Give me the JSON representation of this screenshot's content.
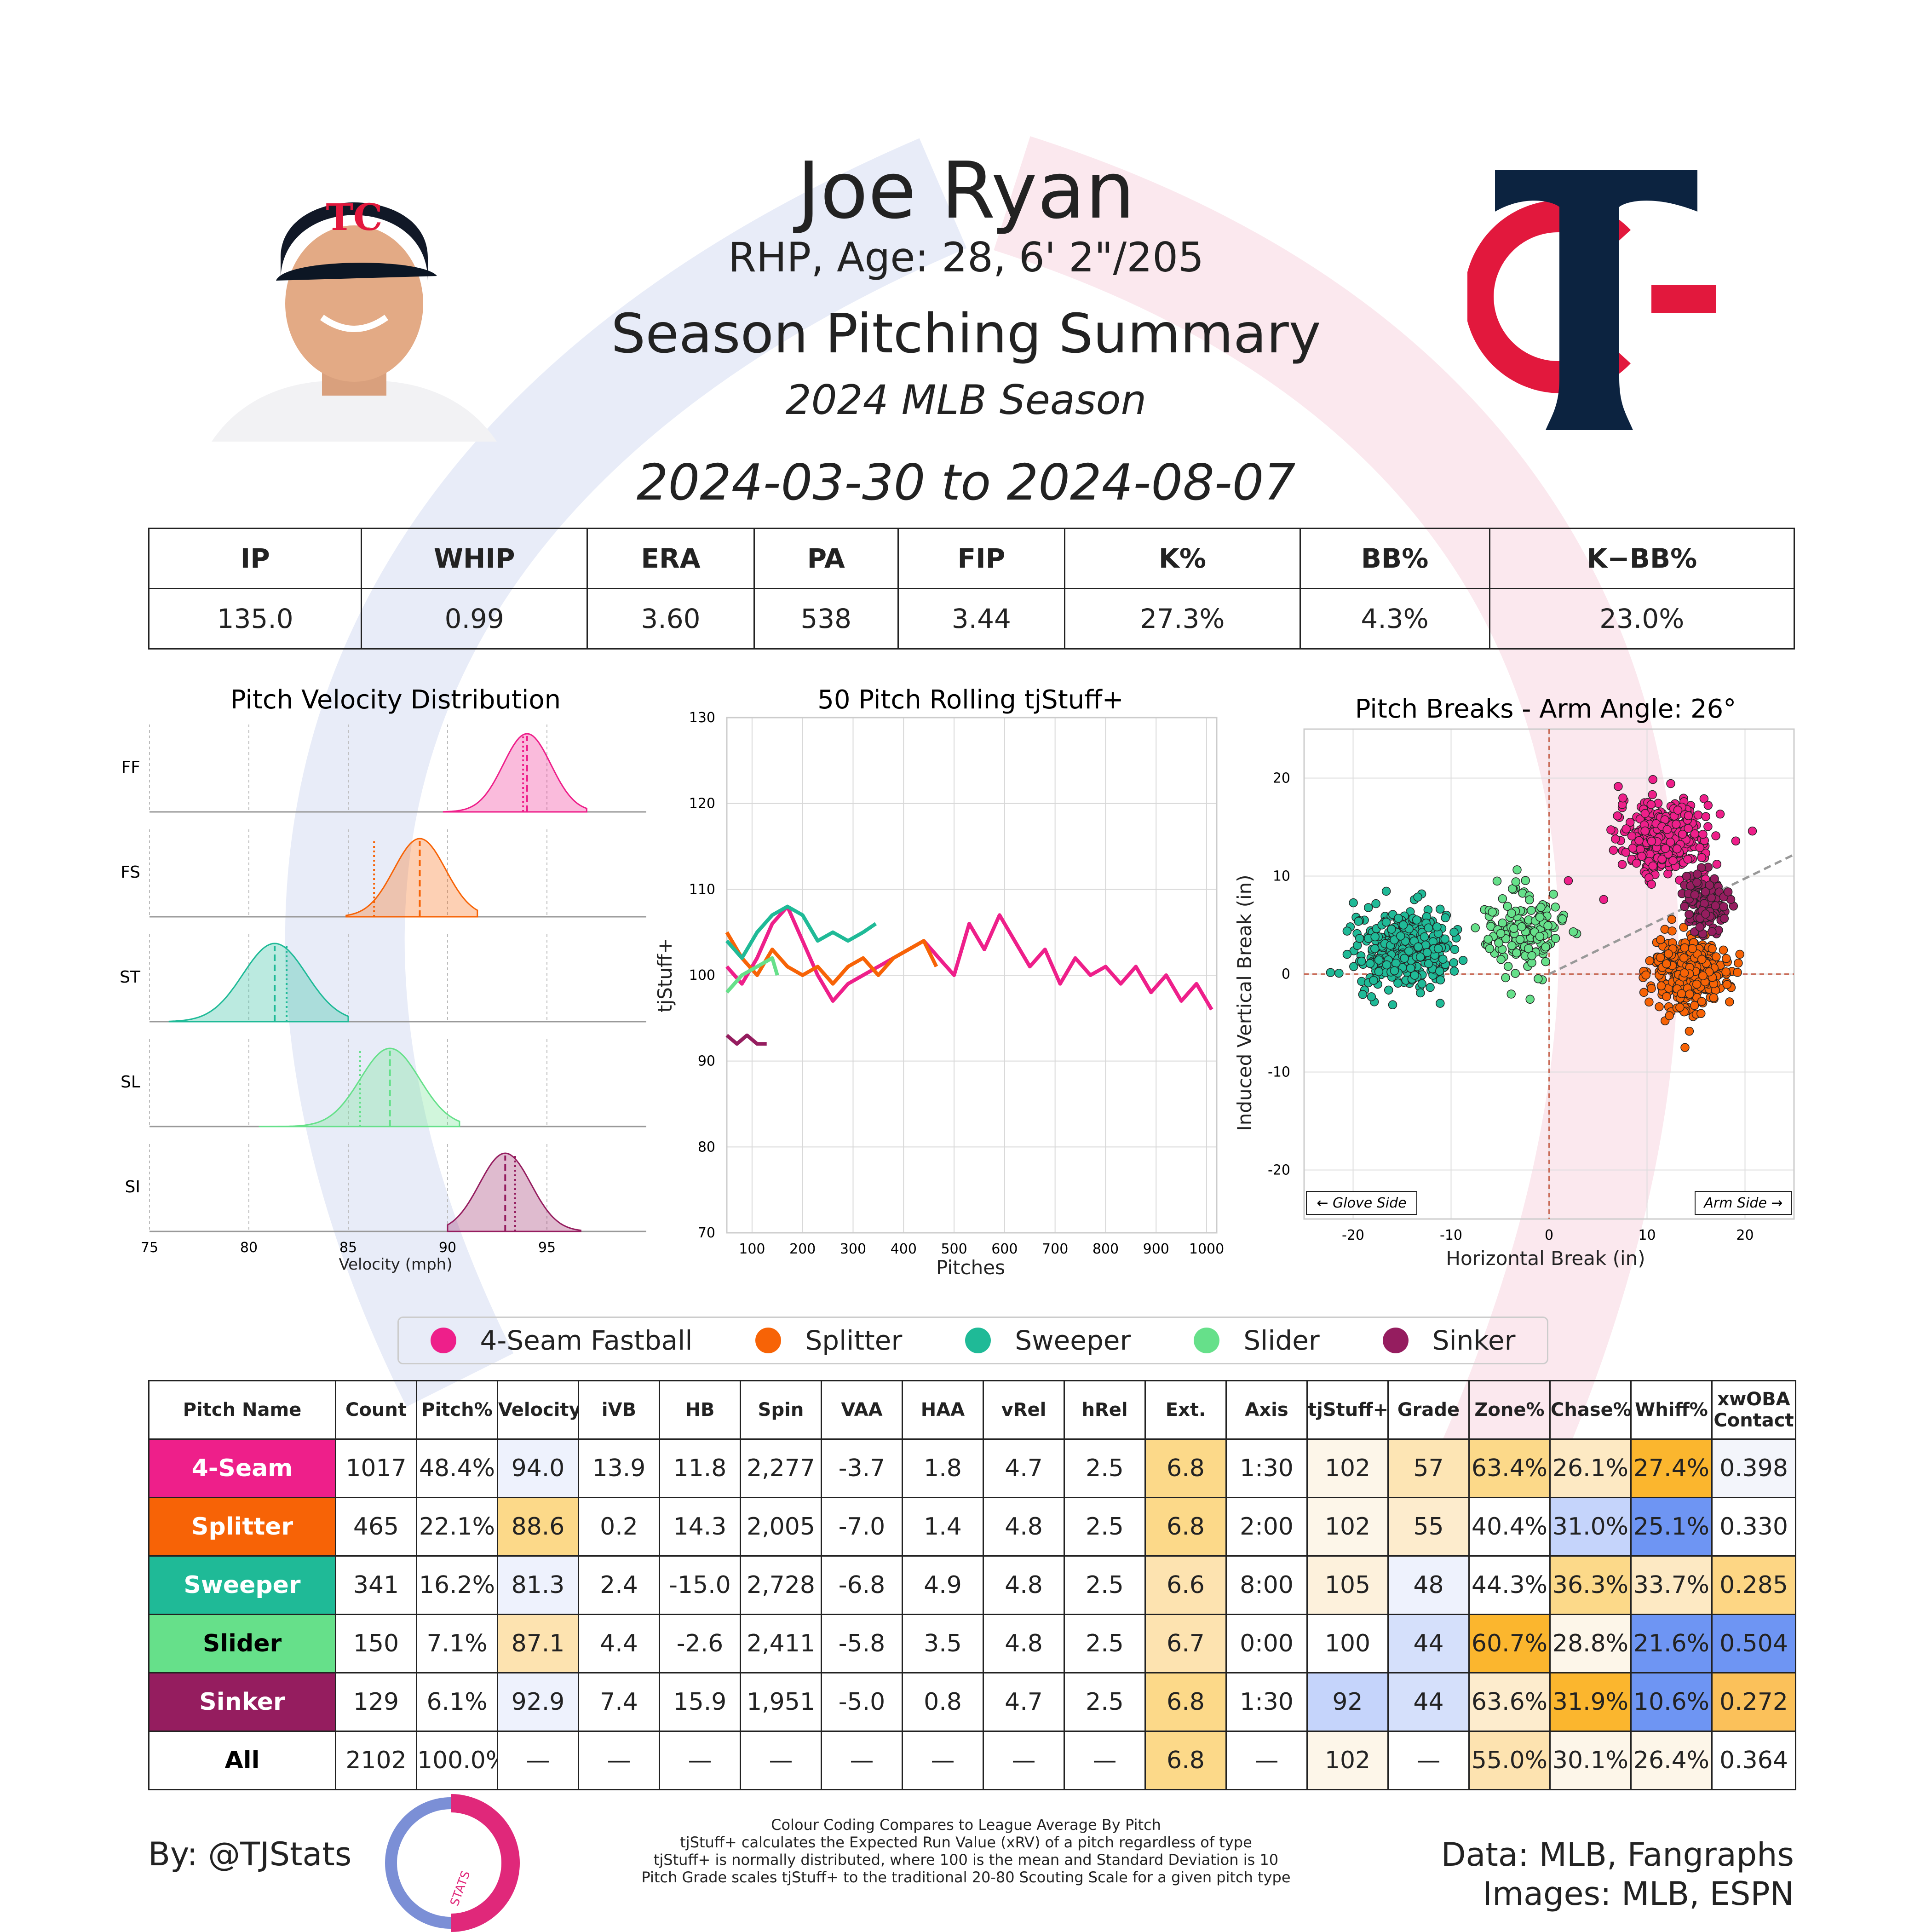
{
  "header": {
    "name": "Joe Ryan",
    "bio": "RHP, Age: 28, 6' 2\"/205",
    "summary_title": "Season Pitching Summary",
    "season": "2024 MLB Season",
    "date_range": "2024-03-30 to 2024-08-07"
  },
  "colors": {
    "ff": "#ee1f8a",
    "fs": "#f76306",
    "st": "#1fba97",
    "sl": "#66e08a",
    "si": "#951d5f",
    "team_navy": "#0c2340",
    "team_red": "#e2183d",
    "grid": "#cccccc"
  },
  "stats_table": {
    "headers": [
      "IP",
      "WHIP",
      "ERA",
      "PA",
      "FIP",
      "K%",
      "BB%",
      "K−BB%"
    ],
    "values": [
      "135.0",
      "0.99",
      "3.60",
      "538",
      "3.44",
      "27.3%",
      "4.3%",
      "23.0%"
    ]
  },
  "chart_data": [
    {
      "type": "area",
      "title": "Pitch Velocity Distribution",
      "xlabel": "Velocity (mph)",
      "xlim": [
        75,
        100
      ],
      "xticks": [
        75,
        80,
        85,
        90,
        95
      ],
      "series": [
        {
          "name": "FF",
          "mean": 94.0,
          "league_mean": 93.8,
          "sd": 1.2,
          "range": [
            89.8,
            97.0
          ]
        },
        {
          "name": "FS",
          "mean": 88.6,
          "league_mean": 86.3,
          "sd": 1.3,
          "range": [
            84.9,
            91.5
          ]
        },
        {
          "name": "ST",
          "mean": 81.3,
          "league_mean": 81.9,
          "sd": 1.6,
          "range": [
            76.0,
            85.0
          ]
        },
        {
          "name": "SL",
          "mean": 87.1,
          "league_mean": 85.6,
          "sd": 1.5,
          "range": [
            80.5,
            90.6
          ]
        },
        {
          "name": "SI",
          "mean": 92.9,
          "league_mean": 93.4,
          "sd": 1.3,
          "range": [
            90.0,
            96.7
          ]
        }
      ]
    },
    {
      "type": "line",
      "title": "50 Pitch Rolling tjStuff+",
      "xlabel": "Pitches",
      "ylabel": "tjStuff+",
      "xlim": [
        50,
        1020
      ],
      "ylim": [
        70,
        130
      ],
      "xticks": [
        100,
        200,
        300,
        400,
        500,
        600,
        700,
        800,
        900,
        1000
      ],
      "yticks": [
        70,
        80,
        90,
        100,
        110,
        120,
        130
      ],
      "series": [
        {
          "name": "4-Seam Fastball",
          "x": [
            50,
            80,
            110,
            140,
            170,
            200,
            230,
            260,
            290,
            320,
            350,
            380,
            410,
            440,
            470,
            500,
            530,
            560,
            590,
            620,
            650,
            680,
            710,
            740,
            770,
            800,
            830,
            860,
            890,
            920,
            950,
            980,
            1010
          ],
          "y": [
            101,
            99,
            102,
            106,
            108,
            104,
            100,
            97,
            99,
            100,
            101,
            102,
            103,
            104,
            102,
            100,
            106,
            103,
            107,
            104,
            101,
            103,
            99,
            102,
            100,
            101,
            99,
            101,
            98,
            100,
            97,
            99,
            96
          ]
        },
        {
          "name": "Splitter",
          "x": [
            50,
            80,
            110,
            140,
            170,
            200,
            230,
            260,
            290,
            320,
            350,
            380,
            410,
            440,
            465
          ],
          "y": [
            105,
            102,
            100,
            103,
            101,
            100,
            101,
            99,
            101,
            102,
            100,
            102,
            103,
            104,
            101
          ]
        },
        {
          "name": "Sweeper",
          "x": [
            50,
            80,
            110,
            140,
            170,
            200,
            230,
            260,
            290,
            320,
            345
          ],
          "y": [
            104,
            102,
            105,
            107,
            108,
            107,
            104,
            105,
            104,
            105,
            106
          ]
        },
        {
          "name": "Slider",
          "x": [
            50,
            80,
            110,
            140,
            150
          ],
          "y": [
            98,
            100,
            101,
            102,
            100
          ]
        },
        {
          "name": "Sinker",
          "x": [
            50,
            70,
            90,
            110,
            129
          ],
          "y": [
            93,
            92,
            93,
            92,
            92
          ]
        }
      ]
    },
    {
      "type": "scatter",
      "title": "Pitch Breaks - Arm Angle: 26°",
      "xlabel": "Horizontal Break (in)",
      "ylabel": "Induced Vertical Break (in)",
      "xlim": [
        -25,
        25
      ],
      "ylim": [
        -25,
        25
      ],
      "xticks": [
        -20,
        -10,
        0,
        10,
        20
      ],
      "yticks": [
        -20,
        -10,
        0,
        10,
        20
      ],
      "annotations": [
        "← Glove Side",
        "Arm Side →"
      ],
      "series": [
        {
          "name": "4-Seam Fastball",
          "center": [
            11.8,
            13.9
          ],
          "spread": [
            2.3,
            1.8
          ],
          "count": 1017
        },
        {
          "name": "Splitter",
          "center": [
            14.3,
            0.2
          ],
          "spread": [
            1.9,
            1.9
          ],
          "count": 465
        },
        {
          "name": "Sweeper",
          "center": [
            -15.0,
            2.4
          ],
          "spread": [
            2.5,
            2.0
          ],
          "count": 341
        },
        {
          "name": "Slider",
          "center": [
            -2.6,
            4.4
          ],
          "spread": [
            2.0,
            2.2
          ],
          "count": 150
        },
        {
          "name": "Sinker",
          "center": [
            15.9,
            7.4
          ],
          "spread": [
            1.0,
            1.6
          ],
          "count": 129
        }
      ]
    }
  ],
  "legend": [
    "4-Seam Fastball",
    "Splitter",
    "Sweeper",
    "Slider",
    "Sinker"
  ],
  "pitch_table": {
    "headers": [
      "Pitch Name",
      "Count",
      "Pitch%",
      "Velocity",
      "iVB",
      "HB",
      "Spin",
      "VAA",
      "HAA",
      "vRel",
      "hRel",
      "Ext.",
      "Axis",
      "tjStuff+",
      "Grade",
      "Zone%",
      "Chase%",
      "Whiff%",
      "xwOBA Contact"
    ],
    "rows": [
      {
        "name": "4-Seam",
        "color": "#ee1f8a",
        "text": "#ffffff",
        "cells": [
          "1017",
          "48.4%",
          "94.0",
          "13.9",
          "11.8",
          "2,277",
          "-3.7",
          "1.8",
          "4.7",
          "2.5",
          "6.8",
          "1:30",
          "102",
          "57",
          "63.4%",
          "26.1%",
          "27.4%",
          "0.398"
        ],
        "bg": [
          "#fff",
          "#fff",
          "#eef2fd",
          "#fff",
          "#fff",
          "#fff",
          "#fff",
          "#fff",
          "#fff",
          "#fff",
          "#fcd989",
          "#fff",
          "#fdf6e9",
          "#fde5b4",
          "#fcd989",
          "#fde9c3",
          "#fbb62e",
          "#f3f5fb"
        ]
      },
      {
        "name": "Splitter",
        "color": "#f76306",
        "text": "#ffffff",
        "cells": [
          "465",
          "22.1%",
          "88.6",
          "0.2",
          "14.3",
          "2,005",
          "-7.0",
          "1.4",
          "4.8",
          "2.5",
          "6.8",
          "2:00",
          "102",
          "55",
          "40.4%",
          "31.0%",
          "25.1%",
          "0.330"
        ],
        "bg": [
          "#fff",
          "#fff",
          "#fcd989",
          "#fff",
          "#fff",
          "#fff",
          "#fff",
          "#fff",
          "#fff",
          "#fff",
          "#fcd989",
          "#fff",
          "#fdf6e9",
          "#fdeccd",
          "#fff",
          "#c5d4fb",
          "#6e95f3",
          "#fff"
        ]
      },
      {
        "name": "Sweeper",
        "color": "#1fba97",
        "text": "#ffffff",
        "cells": [
          "341",
          "16.2%",
          "81.3",
          "2.4",
          "-15.0",
          "2,728",
          "-6.8",
          "4.9",
          "4.8",
          "2.5",
          "6.6",
          "8:00",
          "105",
          "48",
          "44.3%",
          "36.3%",
          "33.7%",
          "0.285"
        ],
        "bg": [
          "#fff",
          "#fff",
          "#eef2fd",
          "#fff",
          "#fff",
          "#fff",
          "#fff",
          "#fff",
          "#fff",
          "#fff",
          "#fde3b0",
          "#fff",
          "#fdf1dc",
          "#eef2fd",
          "#fff",
          "#fcd989",
          "#fde9c3",
          "#fdd684"
        ]
      },
      {
        "name": "Slider",
        "color": "#66e08a",
        "text": "#000000",
        "cells": [
          "150",
          "7.1%",
          "87.1",
          "4.4",
          "-2.6",
          "2,411",
          "-5.8",
          "3.5",
          "4.8",
          "2.5",
          "6.7",
          "0:00",
          "100",
          "44",
          "60.7%",
          "28.8%",
          "21.6%",
          "0.504"
        ],
        "bg": [
          "#fff",
          "#fff",
          "#fde3b0",
          "#fff",
          "#fff",
          "#fff",
          "#fff",
          "#fff",
          "#fff",
          "#fff",
          "#fde3b0",
          "#fff",
          "#fff",
          "#d5e0fb",
          "#fbb62e",
          "#fdf6e9",
          "#6e95f3",
          "#6e95f3"
        ]
      },
      {
        "name": "Sinker",
        "color": "#951d5f",
        "text": "#ffffff",
        "cells": [
          "129",
          "6.1%",
          "92.9",
          "7.4",
          "15.9",
          "1,951",
          "-5.0",
          "0.8",
          "4.7",
          "2.5",
          "6.8",
          "1:30",
          "92",
          "44",
          "63.6%",
          "31.9%",
          "10.6%",
          "0.272"
        ],
        "bg": [
          "#fff",
          "#fff",
          "#eef2fd",
          "#fff",
          "#fff",
          "#fff",
          "#fff",
          "#fff",
          "#fff",
          "#fff",
          "#fcd989",
          "#fff",
          "#c5d4fb",
          "#d5e0fb",
          "#fdeccd",
          "#fbb62e",
          "#6e95f3",
          "#fbc15a"
        ]
      },
      {
        "name": "All",
        "color": "#ffffff",
        "text": "#000000",
        "cells": [
          "2102",
          "100.0%",
          "—",
          "—",
          "—",
          "—",
          "—",
          "—",
          "—",
          "—",
          "6.8",
          "—",
          "102",
          "—",
          "55.0%",
          "30.1%",
          "26.4%",
          "0.364"
        ],
        "bg": [
          "#fff",
          "#fff",
          "#fff",
          "#fff",
          "#fff",
          "#fff",
          "#fff",
          "#fff",
          "#fff",
          "#fff",
          "#fcd989",
          "#fff",
          "#fdf6e9",
          "#fff",
          "#fde3b0",
          "#fdf6e9",
          "#fdf6e9",
          "#fff"
        ]
      }
    ]
  },
  "footer": {
    "by": "By: @TJStats",
    "logo_text": "STATS",
    "notes": [
      "Colour Coding Compares to League Average By Pitch",
      "tjStuff+ calculates the Expected Run Value (xRV) of a pitch regardless of type",
      "tjStuff+ is normally distributed, where 100 is the mean and Standard Deviation is 10",
      "Pitch Grade scales tjStuff+ to the traditional 20-80 Scouting Scale for a given pitch type"
    ],
    "data_source": "Data: MLB, Fangraphs",
    "image_source": "Images: MLB, ESPN"
  }
}
